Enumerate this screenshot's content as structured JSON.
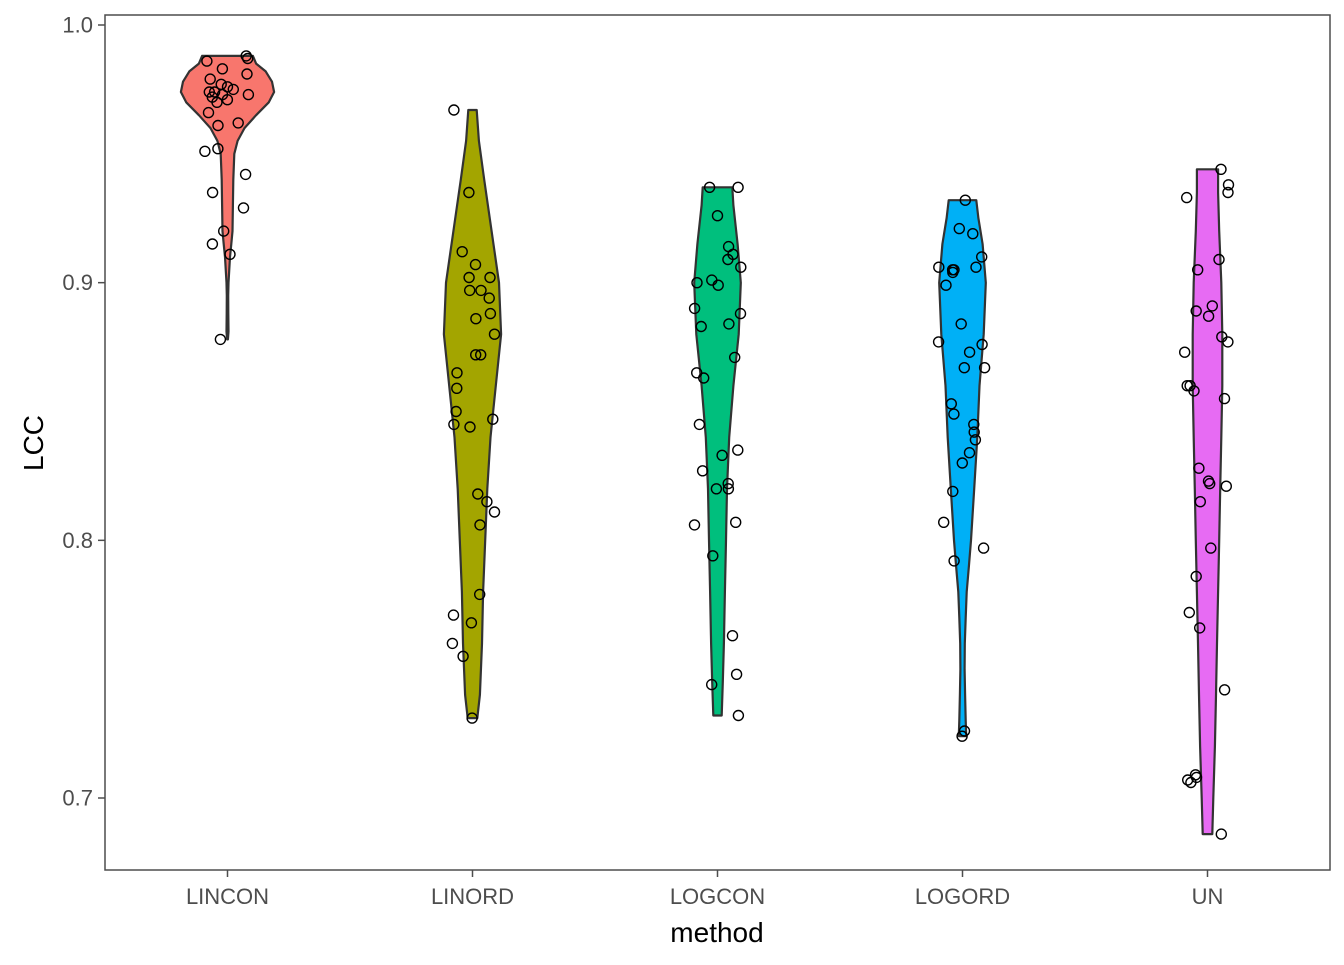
{
  "chart_data": {
    "type": "violin",
    "title": "",
    "xlabel": "method",
    "ylabel": "LCC",
    "ylim": [
      0.67,
      1.0
    ],
    "yticks": [
      "0.7",
      "0.8",
      "0.9",
      "1.0"
    ],
    "grid": false,
    "legend": "none",
    "categories": [
      "LINCON",
      "LINORD",
      "LOGCON",
      "LOGORD",
      "UN"
    ],
    "colors": [
      "#F8766D",
      "#A3A500",
      "#00BF7D",
      "#00B0F6",
      "#E76BF3"
    ],
    "series": [
      {
        "violin": {
          "ymin": 0.878,
          "ymax": 0.988,
          "profile": [
            [
              0.878,
              0.004
            ],
            [
              0.881,
              0.009
            ],
            [
              0.888,
              0.008
            ],
            [
              0.895,
              0.007
            ],
            [
              0.9,
              0.009
            ],
            [
              0.91,
              0.024
            ],
            [
              0.915,
              0.036
            ],
            [
              0.92,
              0.047
            ],
            [
              0.93,
              0.051
            ],
            [
              0.94,
              0.055
            ],
            [
              0.95,
              0.064
            ],
            [
              0.955,
              0.095
            ],
            [
              0.96,
              0.16
            ],
            [
              0.965,
              0.27
            ],
            [
              0.97,
              0.39
            ],
            [
              0.974,
              0.44
            ],
            [
              0.978,
              0.42
            ],
            [
              0.982,
              0.36
            ],
            [
              0.985,
              0.27
            ],
            [
              0.988,
              0.24
            ]
          ]
        },
        "points": [
          0.988,
          0.987,
          0.986,
          0.983,
          0.981,
          0.979,
          0.977,
          0.976,
          0.975,
          0.974,
          0.974,
          0.973,
          0.973,
          0.972,
          0.971,
          0.97,
          0.966,
          0.962,
          0.961,
          0.952,
          0.951,
          0.942,
          0.935,
          0.929,
          0.92,
          0.915,
          0.911,
          0.878
        ]
      },
      {
        "violin": {
          "ymin": 0.731,
          "ymax": 0.967,
          "profile": [
            [
              0.731,
              0.045
            ],
            [
              0.74,
              0.07
            ],
            [
              0.76,
              0.09
            ],
            [
              0.78,
              0.1
            ],
            [
              0.8,
              0.12
            ],
            [
              0.82,
              0.14
            ],
            [
              0.84,
              0.17
            ],
            [
              0.86,
              0.22
            ],
            [
              0.88,
              0.27
            ],
            [
              0.9,
              0.25
            ],
            [
              0.92,
              0.18
            ],
            [
              0.94,
              0.11
            ],
            [
              0.955,
              0.06
            ],
            [
              0.967,
              0.04
            ]
          ]
        },
        "points": [
          0.967,
          0.935,
          0.912,
          0.907,
          0.902,
          0.902,
          0.897,
          0.897,
          0.894,
          0.888,
          0.886,
          0.88,
          0.872,
          0.872,
          0.865,
          0.859,
          0.85,
          0.847,
          0.845,
          0.844,
          0.818,
          0.815,
          0.811,
          0.806,
          0.779,
          0.771,
          0.768,
          0.76,
          0.755,
          0.731
        ]
      },
      {
        "violin": {
          "ymin": 0.732,
          "ymax": 0.937,
          "profile": [
            [
              0.732,
              0.04
            ],
            [
              0.745,
              0.05
            ],
            [
              0.76,
              0.06
            ],
            [
              0.78,
              0.07
            ],
            [
              0.8,
              0.08
            ],
            [
              0.82,
              0.09
            ],
            [
              0.84,
              0.11
            ],
            [
              0.86,
              0.15
            ],
            [
              0.88,
              0.2
            ],
            [
              0.9,
              0.22
            ],
            [
              0.915,
              0.19
            ],
            [
              0.93,
              0.15
            ],
            [
              0.937,
              0.14
            ]
          ]
        },
        "points": [
          0.937,
          0.937,
          0.926,
          0.914,
          0.911,
          0.909,
          0.906,
          0.901,
          0.9,
          0.899,
          0.89,
          0.888,
          0.884,
          0.883,
          0.871,
          0.865,
          0.863,
          0.845,
          0.835,
          0.833,
          0.827,
          0.822,
          0.82,
          0.82,
          0.807,
          0.806,
          0.794,
          0.763,
          0.748,
          0.744,
          0.732
        ]
      },
      {
        "violin": {
          "ymin": 0.724,
          "ymax": 0.932,
          "profile": [
            [
              0.724,
              0.035
            ],
            [
              0.73,
              0.03
            ],
            [
              0.74,
              0.025
            ],
            [
              0.75,
              0.02
            ],
            [
              0.76,
              0.022
            ],
            [
              0.77,
              0.03
            ],
            [
              0.78,
              0.04
            ],
            [
              0.79,
              0.06
            ],
            [
              0.8,
              0.08
            ],
            [
              0.82,
              0.11
            ],
            [
              0.84,
              0.14
            ],
            [
              0.86,
              0.16
            ],
            [
              0.88,
              0.2
            ],
            [
              0.9,
              0.22
            ],
            [
              0.915,
              0.19
            ],
            [
              0.925,
              0.15
            ],
            [
              0.932,
              0.13
            ]
          ]
        },
        "points": [
          0.932,
          0.921,
          0.919,
          0.91,
          0.906,
          0.906,
          0.905,
          0.905,
          0.904,
          0.899,
          0.884,
          0.877,
          0.876,
          0.873,
          0.867,
          0.867,
          0.853,
          0.849,
          0.845,
          0.842,
          0.839,
          0.834,
          0.83,
          0.819,
          0.807,
          0.797,
          0.792,
          0.726,
          0.724
        ]
      },
      {
        "violin": {
          "ymin": 0.686,
          "ymax": 0.944,
          "profile": [
            [
              0.686,
              0.045
            ],
            [
              0.7,
              0.055
            ],
            [
              0.72,
              0.07
            ],
            [
              0.74,
              0.08
            ],
            [
              0.76,
              0.09
            ],
            [
              0.78,
              0.1
            ],
            [
              0.8,
              0.11
            ],
            [
              0.82,
              0.12
            ],
            [
              0.84,
              0.13
            ],
            [
              0.86,
              0.14
            ],
            [
              0.88,
              0.14
            ],
            [
              0.9,
              0.13
            ],
            [
              0.92,
              0.11
            ],
            [
              0.935,
              0.1
            ],
            [
              0.944,
              0.1
            ]
          ]
        },
        "points": [
          0.944,
          0.938,
          0.935,
          0.933,
          0.909,
          0.905,
          0.891,
          0.889,
          0.887,
          0.879,
          0.877,
          0.873,
          0.86,
          0.86,
          0.858,
          0.855,
          0.828,
          0.823,
          0.822,
          0.821,
          0.815,
          0.797,
          0.786,
          0.772,
          0.766,
          0.742,
          0.709,
          0.708,
          0.707,
          0.706,
          0.686
        ]
      }
    ]
  }
}
